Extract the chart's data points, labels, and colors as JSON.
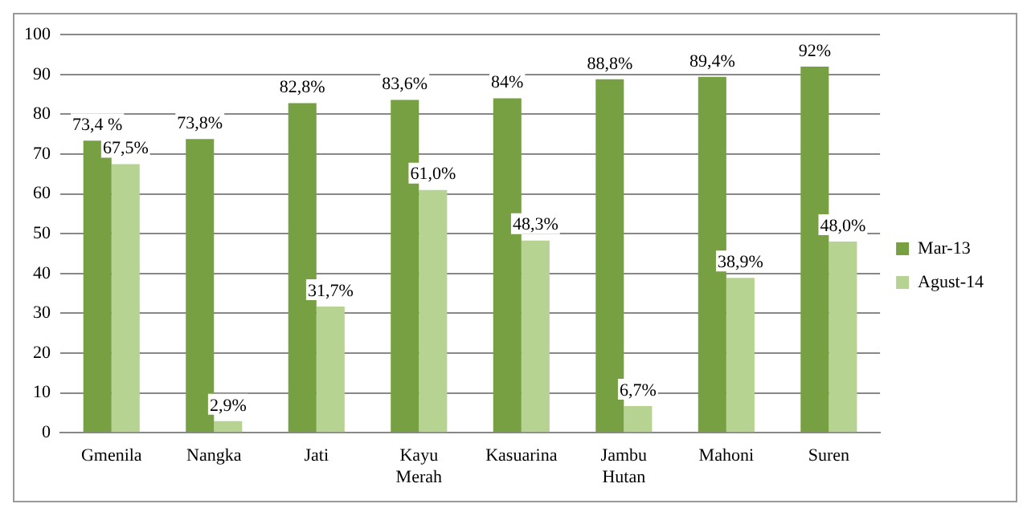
{
  "chart_data": {
    "type": "bar",
    "categories": [
      "Gmenila",
      "Nangka",
      "Jati",
      "Kayu Merah",
      "Kasuarina",
      "Jambu Hutan",
      "Mahoni",
      "Suren"
    ],
    "series": [
      {
        "name": "Mar-13",
        "color": "#77a043",
        "values": [
          73.4,
          73.8,
          82.8,
          83.6,
          84,
          88.8,
          89.4,
          92
        ],
        "value_labels": [
          "73,4 %",
          "73,8%",
          "82,8%",
          "83,6%",
          "84%",
          "88,8%",
          "89,4%",
          "92%"
        ]
      },
      {
        "name": "Agust-14",
        "color": "#b7d391",
        "values": [
          67.5,
          2.9,
          31.7,
          61.0,
          48.3,
          6.7,
          38.9,
          48.0
        ],
        "value_labels": [
          "67,5%",
          "2,9%",
          "31,7%",
          "61,0%",
          "48,3%",
          "6,7%",
          "38,9%",
          "48,0%"
        ]
      }
    ],
    "ylim": [
      0,
      100
    ],
    "yticks": [
      0,
      10,
      20,
      30,
      40,
      50,
      60,
      70,
      80,
      90,
      100
    ],
    "grid": "y",
    "legend": "right"
  }
}
